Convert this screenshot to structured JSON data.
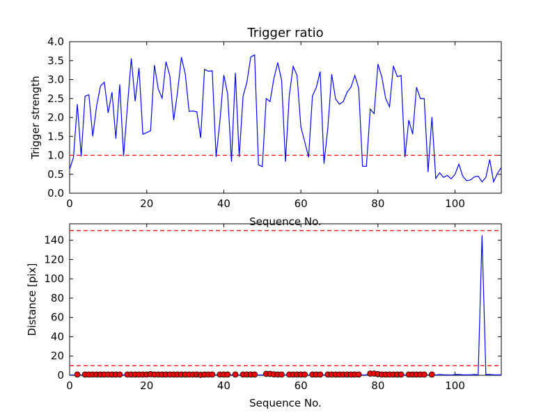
{
  "chart_data": [
    {
      "type": "line",
      "title": "Trigger ratio",
      "xlabel": "Sequence No.",
      "ylabel": "Trigger strength",
      "xlim": [
        0,
        112
      ],
      "ylim": [
        0,
        4.0
      ],
      "xticks": [
        "0",
        "20",
        "40",
        "60",
        "80",
        "100"
      ],
      "yticks": [
        "0.0",
        "0.5",
        "1.0",
        "1.5",
        "2.0",
        "2.5",
        "3.0",
        "3.5",
        "4.0"
      ],
      "grid": false,
      "threshold_lines": [
        1.0
      ],
      "line_color": "#0000ff",
      "threshold_color": "#ff0000",
      "series": [
        {
          "x": [
            0,
            1,
            2,
            3,
            4,
            5,
            6,
            7,
            8,
            9,
            10,
            11,
            12,
            13,
            14,
            15,
            16,
            17,
            18,
            19,
            20,
            21,
            22,
            23,
            24,
            25,
            26,
            27,
            28,
            29,
            30,
            31,
            32,
            33,
            34,
            35,
            36,
            37,
            38,
            39,
            40,
            41,
            42,
            43,
            44,
            45,
            46,
            47,
            48,
            49,
            50,
            51,
            52,
            53,
            54,
            55,
            56,
            57,
            58,
            59,
            60,
            61,
            62,
            63,
            64,
            65,
            66,
            67,
            68,
            69,
            70,
            71,
            72,
            73,
            74,
            75,
            76,
            77,
            78,
            79,
            80,
            81,
            82,
            83,
            84,
            85,
            86,
            87,
            88,
            89,
            90,
            91,
            92,
            93,
            94,
            95,
            96,
            97,
            98,
            99,
            100,
            101,
            102,
            103,
            104,
            105,
            106,
            107,
            108,
            109,
            110,
            111,
            112
          ],
          "y": [
            0.63,
            0.95,
            2.35,
            0.97,
            2.56,
            2.6,
            1.5,
            2.3,
            2.83,
            2.93,
            2.12,
            2.67,
            1.44,
            2.87,
            0.98,
            2.3,
            3.56,
            2.43,
            3.31,
            1.56,
            1.6,
            1.65,
            3.38,
            2.75,
            2.51,
            3.47,
            3.1,
            1.93,
            2.67,
            3.59,
            3.15,
            2.16,
            2.17,
            2.15,
            1.46,
            3.27,
            3.22,
            3.23,
            0.96,
            1.91,
            3.12,
            2.62,
            0.83,
            3.18,
            0.96,
            2.56,
            2.93,
            3.6,
            3.65,
            0.75,
            0.7,
            2.5,
            2.42,
            3.03,
            3.45,
            2.98,
            0.83,
            2.59,
            3.35,
            3.11,
            1.75,
            1.36,
            0.95,
            2.57,
            2.79,
            3.21,
            0.78,
            1.73,
            3.14,
            2.49,
            2.35,
            2.42,
            2.67,
            2.8,
            3.11,
            2.77,
            0.71,
            0.71,
            2.22,
            2.1,
            3.41,
            3.07,
            2.5,
            2.28,
            3.36,
            3.08,
            3.11,
            0.95,
            1.93,
            1.56,
            2.8,
            2.5,
            2.5,
            0.56,
            2.01,
            0.39,
            0.54,
            0.42,
            0.47,
            0.38,
            0.5,
            0.77,
            0.45,
            0.33,
            0.35,
            0.43,
            0.45,
            0.3,
            0.42,
            0.89,
            0.3,
            0.52,
            0.68
          ]
        }
      ]
    },
    {
      "type": "line",
      "title": "",
      "xlabel": "Sequence No.",
      "ylabel": "Distance [pix]",
      "xlim": [
        0,
        112
      ],
      "ylim": [
        0,
        157
      ],
      "xticks": [
        "0",
        "20",
        "40",
        "60",
        "80",
        "100"
      ],
      "yticks": [
        "0",
        "20",
        "40",
        "60",
        "80",
        "100",
        "120",
        "140"
      ],
      "grid": false,
      "threshold_lines": [
        10,
        150
      ],
      "line_color": "#0000ff",
      "threshold_color": "#ff0000",
      "marker_color": "#ff0000",
      "series": [
        {
          "x": [
            0,
            1,
            2,
            3,
            4,
            5,
            6,
            7,
            8,
            9,
            10,
            11,
            12,
            13,
            14,
            15,
            16,
            17,
            18,
            19,
            20,
            21,
            22,
            23,
            24,
            25,
            26,
            27,
            28,
            29,
            30,
            31,
            32,
            33,
            34,
            35,
            36,
            37,
            38,
            39,
            40,
            41,
            42,
            43,
            44,
            45,
            46,
            47,
            48,
            49,
            50,
            51,
            52,
            53,
            54,
            55,
            56,
            57,
            58,
            59,
            60,
            61,
            62,
            63,
            64,
            65,
            66,
            67,
            68,
            69,
            70,
            71,
            72,
            73,
            74,
            75,
            76,
            77,
            78,
            79,
            80,
            81,
            82,
            83,
            84,
            85,
            86,
            87,
            88,
            89,
            90,
            91,
            92,
            93,
            94,
            95,
            96,
            97,
            98,
            99,
            100,
            101,
            102,
            103,
            104,
            105,
            106,
            107,
            108,
            109,
            110,
            111,
            112
          ],
          "y": [
            0.3,
            0.3,
            0.8,
            0.3,
            0.8,
            0.8,
            0.8,
            0.8,
            0.8,
            0.8,
            0.8,
            0.8,
            0.8,
            0.8,
            0.3,
            0.8,
            0.8,
            0.8,
            0.8,
            0.8,
            0.8,
            1.2,
            0.8,
            0.8,
            0.8,
            0.8,
            0.8,
            0.8,
            0.8,
            0.8,
            0.8,
            0.8,
            0.8,
            0.8,
            0.5,
            0.8,
            0.8,
            0.8,
            0.3,
            0.8,
            0.8,
            0.8,
            0.3,
            0.8,
            0.3,
            0.8,
            0.8,
            0.8,
            0.8,
            0.3,
            0.3,
            1.5,
            1.5,
            1.0,
            0.8,
            0.8,
            0.3,
            0.8,
            0.8,
            0.8,
            0.8,
            0.8,
            0.3,
            0.8,
            0.8,
            0.8,
            0.3,
            0.8,
            0.8,
            0.8,
            0.8,
            0.8,
            0.8,
            0.8,
            0.8,
            0.8,
            0.3,
            0.5,
            1.8,
            1.8,
            1.2,
            0.8,
            0.8,
            0.8,
            0.8,
            0.8,
            0.8,
            0.3,
            0.8,
            0.8,
            0.8,
            0.8,
            0.8,
            0.3,
            0.8,
            0.3,
            0.8,
            0.5,
            0.5,
            0.3,
            0.8,
            0.8,
            0.5,
            0.5,
            0.5,
            0.8,
            0.5,
            145,
            0.8,
            0.8,
            0.5,
            0.5,
            0.5
          ],
          "markers_x": [
            2,
            4,
            5,
            6,
            7,
            8,
            9,
            10,
            11,
            12,
            13,
            15,
            16,
            17,
            18,
            19,
            20,
            21,
            22,
            23,
            24,
            25,
            26,
            27,
            28,
            29,
            30,
            31,
            32,
            33,
            34,
            35,
            36,
            37,
            39,
            40,
            41,
            43,
            45,
            46,
            47,
            48,
            51,
            52,
            53,
            54,
            55,
            57,
            58,
            59,
            60,
            61,
            63,
            64,
            65,
            67,
            68,
            69,
            70,
            71,
            72,
            73,
            74,
            75,
            78,
            79,
            80,
            81,
            82,
            83,
            84,
            85,
            86,
            88,
            89,
            90,
            91,
            92,
            94
          ],
          "markers_y": [
            0.8,
            0.8,
            0.8,
            0.8,
            0.8,
            0.8,
            0.8,
            0.8,
            0.8,
            0.8,
            0.8,
            0.8,
            0.8,
            0.8,
            0.8,
            0.8,
            0.8,
            1.2,
            0.8,
            0.8,
            0.8,
            0.8,
            0.8,
            0.8,
            0.8,
            0.8,
            0.8,
            0.8,
            0.8,
            0.8,
            0.5,
            0.8,
            0.8,
            0.8,
            0.8,
            0.8,
            0.8,
            0.8,
            0.8,
            0.8,
            0.8,
            0.8,
            1.5,
            1.5,
            1.0,
            0.8,
            0.8,
            0.8,
            0.8,
            0.8,
            0.8,
            0.8,
            0.8,
            0.8,
            0.8,
            0.8,
            0.8,
            0.8,
            0.8,
            0.8,
            0.8,
            0.8,
            0.8,
            0.8,
            1.8,
            1.8,
            1.2,
            0.8,
            0.8,
            0.8,
            0.8,
            0.8,
            0.8,
            0.8,
            0.8,
            0.8,
            0.8,
            0.8,
            0.8
          ]
        }
      ]
    }
  ]
}
